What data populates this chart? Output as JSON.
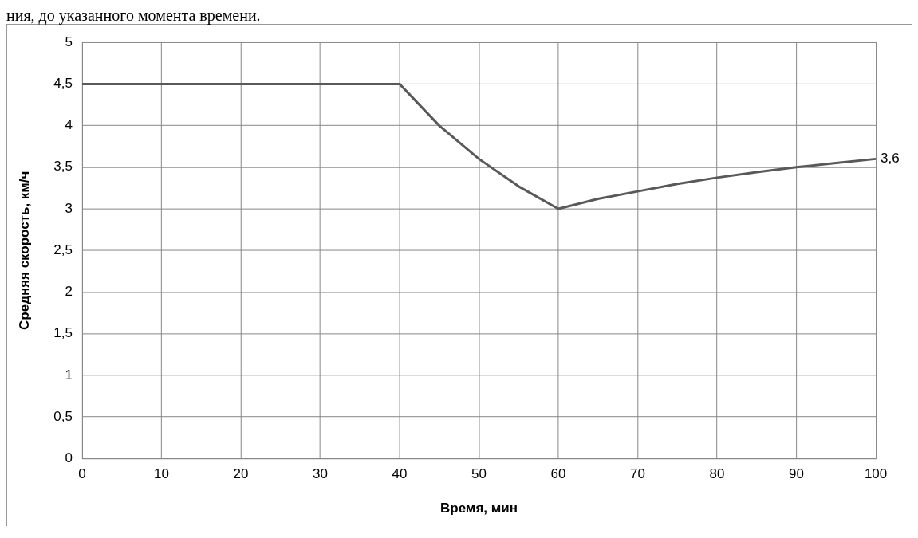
{
  "chart_data": {
    "type": "line",
    "xlabel": "Время, мин",
    "ylabel": "Средняя скорость, км/ч",
    "annotations": [
      "ния, до указанного момента времени."
    ],
    "x": [
      0,
      5,
      10,
      15,
      20,
      25,
      30,
      35,
      40,
      45,
      50,
      55,
      60,
      65,
      70,
      75,
      80,
      85,
      90,
      95,
      100
    ],
    "series": [
      {
        "color": "#595959",
        "values": [
          4.5,
          4.5,
          4.5,
          4.5,
          4.5,
          4.5,
          4.5,
          4.5,
          4.5,
          4.0,
          3.6,
          3.27,
          3.0,
          3.12,
          3.21,
          3.3,
          3.375,
          3.44,
          3.5,
          3.55,
          3.6
        ],
        "value_labels": [
          null,
          null,
          null,
          null,
          null,
          null,
          null,
          null,
          null,
          null,
          null,
          null,
          null,
          null,
          null,
          null,
          null,
          null,
          null,
          null,
          "3,6"
        ]
      }
    ],
    "xlim": [
      0,
      100
    ],
    "xticks": [
      0,
      10,
      20,
      30,
      40,
      50,
      60,
      70,
      80,
      90,
      100
    ],
    "ylim": [
      0,
      5
    ],
    "yticks": [
      0,
      {
        "value": 0.5,
        "label": "0,5"
      },
      1,
      {
        "value": 1.5,
        "label": "1,5"
      },
      2,
      {
        "value": 2.5,
        "label": "2,5"
      },
      3,
      {
        "value": 3.5,
        "label": "3,5"
      },
      4,
      {
        "value": 4.5,
        "label": "4,5"
      },
      5
    ],
    "grid": true,
    "legend": false,
    "marker": "none",
    "line_style": "solid"
  }
}
